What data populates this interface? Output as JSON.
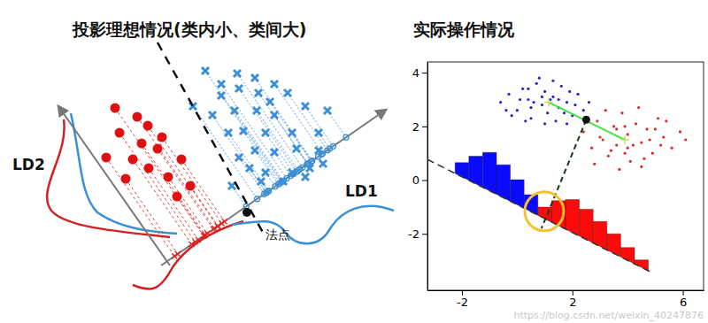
{
  "diagram": {
    "title": "投影理想情况(类内小、类间大)",
    "ld1_label": "LD1",
    "ld2_label": "LD2",
    "point_label": "法点"
  },
  "watermark": "https://blog.csdn.net/weixin_40247876",
  "chart_data": {
    "type": "scatter",
    "title": "实际操作情况",
    "xlim": [
      -3.25,
      6.75
    ],
    "ylim": [
      -4.1,
      4.4
    ],
    "xticks": [
      -2,
      2,
      6
    ],
    "yticks": [
      -2,
      0,
      2,
      4
    ],
    "series": [
      {
        "color": "#2525c8",
        "marker": "dot",
        "x": [
          -0.6,
          -0.3,
          0.0,
          0.2,
          0.4,
          0.5,
          0.7,
          0.9,
          1.0,
          1.1,
          1.3,
          1.5,
          1.6,
          1.8,
          2.0,
          2.2,
          2.4,
          -0.2,
          0.3,
          0.6,
          0.8,
          1.2,
          1.4,
          1.7,
          1.9,
          0.1,
          0.5,
          1.0,
          1.5,
          2.1,
          2.6,
          -0.4,
          0.9,
          1.3,
          0.4,
          1.8
        ],
        "values": [
          2.9,
          3.2,
          2.6,
          3.4,
          3.0,
          2.3,
          3.6,
          2.8,
          3.3,
          2.5,
          3.1,
          2.7,
          3.5,
          2.9,
          2.4,
          3.2,
          2.6,
          2.4,
          2.2,
          2.9,
          3.8,
          3.0,
          2.2,
          2.5,
          3.3,
          3.0,
          2.7,
          2.1,
          3.0,
          2.8,
          2.9,
          2.6,
          3.1,
          3.7,
          3.4,
          2.1
        ]
      },
      {
        "color": "#e02828",
        "marker": "dot",
        "x": [
          2.4,
          2.7,
          2.9,
          3.1,
          3.3,
          3.5,
          3.6,
          3.8,
          4.0,
          4.1,
          4.3,
          4.5,
          4.7,
          4.9,
          5.1,
          5.3,
          5.6,
          5.9,
          6.1,
          2.8,
          3.2,
          3.4,
          3.7,
          3.9,
          4.2,
          4.4,
          4.6,
          4.8,
          5.0,
          5.4,
          3.0,
          3.6,
          4.0,
          4.5,
          5.2,
          3.9
        ],
        "values": [
          1.8,
          1.2,
          2.2,
          1.5,
          0.9,
          2.0,
          1.3,
          2.5,
          1.7,
          0.7,
          2.1,
          1.4,
          1.9,
          1.0,
          2.3,
          1.6,
          1.2,
          1.8,
          1.5,
          0.6,
          2.6,
          1.1,
          0.4,
          2.0,
          1.3,
          2.7,
          0.8,
          1.5,
          1.9,
          2.2,
          1.6,
          1.9,
          1.2,
          0.5,
          1.3,
          1.0
        ]
      }
    ],
    "projection_line": {
      "x": [
        -3.25,
        4.83
      ],
      "values": [
        0.77,
        -3.42
      ]
    },
    "histograms": [
      {
        "color": "#0a0aff",
        "bins": [
          -2.25,
          -1.75,
          -1.25,
          -0.75,
          -0.25,
          0.25,
          0.75,
          1.25
        ],
        "counts": [
          0.4,
          0.9,
          1.3,
          1.1,
          0.8,
          0.5,
          0.2
        ]
      },
      {
        "color": "#ff0a0a",
        "bins": [
          0.75,
          1.25,
          1.75,
          2.25,
          2.75,
          3.25,
          3.75,
          4.25,
          4.75
        ],
        "counts": [
          0.3,
          0.8,
          1.1,
          1.0,
          0.8,
          0.6,
          0.35,
          0.15
        ]
      }
    ],
    "means": {
      "x": [
        1.14,
        3.9
      ],
      "values": [
        2.9,
        1.5
      ]
    },
    "normal_line": {
      "x": [
        2.5,
        0.88
      ],
      "values": [
        2.25,
        -1.8
      ]
    },
    "highlight": {
      "x": [
        0.98
      ],
      "values": [
        -1.16
      ]
    }
  }
}
